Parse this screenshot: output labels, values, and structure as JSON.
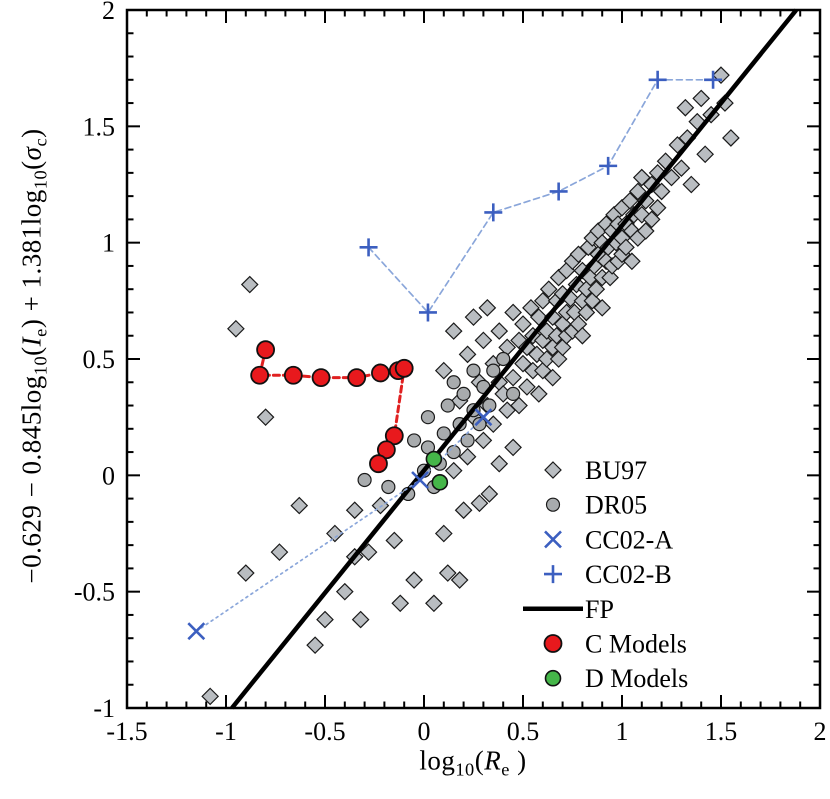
{
  "figure": {
    "background": "#ffffff",
    "frame_color": "#000000"
  },
  "chart_data": {
    "type": "scatter",
    "title": "",
    "xlabel_parts": [
      {
        "t": "log"
      },
      {
        "sub": "10"
      },
      {
        "t": "("
      },
      {
        "i": "R"
      },
      {
        "sub": "e"
      },
      {
        "t": " )"
      }
    ],
    "ylabel_parts": [
      {
        "t": "−0.629 − 0.845log"
      },
      {
        "sub": "10"
      },
      {
        "t": "("
      },
      {
        "i": "I"
      },
      {
        "sub": "e"
      },
      {
        "t": ") + 1.381log"
      },
      {
        "sub": "10"
      },
      {
        "t": "("
      },
      {
        "i": "σ"
      },
      {
        "sub": "c"
      },
      {
        "t": ")"
      }
    ],
    "xlim": [
      -1.5,
      2
    ],
    "ylim": [
      -1,
      2
    ],
    "x_ticks": [
      -1.5,
      -1,
      -0.5,
      0,
      0.5,
      1,
      1.5,
      2
    ],
    "x_tick_labels": [
      "-1.5",
      "-1",
      "-0.5",
      "0",
      "0.5",
      "1",
      "1.5",
      "2"
    ],
    "y_ticks": [
      -1,
      -0.5,
      0,
      0.5,
      1,
      1.5,
      2
    ],
    "y_tick_labels": [
      "-1",
      "-0.5",
      "0",
      "0.5",
      "1",
      "1.5",
      "2"
    ],
    "minor_tick_step": 0.1,
    "grid": false,
    "legend_position": "lower right",
    "series": [
      {
        "name": "BU97",
        "marker": "diamond",
        "fill": "#b9bdc1",
        "edge": "#1a1a1a",
        "size": 8,
        "points": [
          [
            -1.08,
            -0.95
          ],
          [
            -0.88,
            0.82
          ],
          [
            -0.95,
            0.63
          ],
          [
            -0.8,
            0.25
          ],
          [
            -0.9,
            -0.42
          ],
          [
            -0.73,
            -0.33
          ],
          [
            -0.63,
            -0.13
          ],
          [
            -0.55,
            -0.73
          ],
          [
            -0.5,
            -0.62
          ],
          [
            -0.45,
            -0.25
          ],
          [
            -0.4,
            -0.5
          ],
          [
            -0.35,
            -0.35
          ],
          [
            -0.32,
            -0.62
          ],
          [
            -0.28,
            -0.33
          ],
          [
            -0.35,
            -0.15
          ],
          [
            -0.22,
            -0.13
          ],
          [
            -0.15,
            -0.28
          ],
          [
            -0.12,
            -0.55
          ],
          [
            -0.05,
            -0.45
          ],
          [
            0.05,
            -0.55
          ],
          [
            0.12,
            -0.42
          ],
          [
            0.18,
            -0.45
          ],
          [
            0.1,
            -0.25
          ],
          [
            0.2,
            -0.15
          ],
          [
            0.28,
            -0.12
          ],
          [
            0.33,
            -0.08
          ],
          [
            0.15,
            0.02
          ],
          [
            0.22,
            0.08
          ],
          [
            0.3,
            0.15
          ],
          [
            0.38,
            0.05
          ],
          [
            0.45,
            0.12
          ],
          [
            0.35,
            0.22
          ],
          [
            0.42,
            0.28
          ],
          [
            0.25,
            0.25
          ],
          [
            0.32,
            0.3
          ],
          [
            0.38,
            0.4
          ],
          [
            0.1,
            0.45
          ],
          [
            0.15,
            0.62
          ],
          [
            0.18,
            0.32
          ],
          [
            0.22,
            0.52
          ],
          [
            0.25,
            0.68
          ],
          [
            0.28,
            0.4
          ],
          [
            0.3,
            0.58
          ],
          [
            0.32,
            0.72
          ],
          [
            0.35,
            0.48
          ],
          [
            0.38,
            0.62
          ],
          [
            0.4,
            0.35
          ],
          [
            0.42,
            0.55
          ],
          [
            0.45,
            0.7
          ],
          [
            0.45,
            0.42
          ],
          [
            0.48,
            0.58
          ],
          [
            0.48,
            0.3
          ],
          [
            0.5,
            0.48
          ],
          [
            0.5,
            0.65
          ],
          [
            0.52,
            0.38
          ],
          [
            0.52,
            0.55
          ],
          [
            0.54,
            0.72
          ],
          [
            0.55,
            0.45
          ],
          [
            0.55,
            0.6
          ],
          [
            0.57,
            0.52
          ],
          [
            0.58,
            0.68
          ],
          [
            0.58,
            0.35
          ],
          [
            0.6,
            0.58
          ],
          [
            0.6,
            0.75
          ],
          [
            0.6,
            0.45
          ],
          [
            0.62,
            0.62
          ],
          [
            0.62,
            0.5
          ],
          [
            0.63,
            0.8
          ],
          [
            0.65,
            0.55
          ],
          [
            0.65,
            0.68
          ],
          [
            0.65,
            0.42
          ],
          [
            0.67,
            0.75
          ],
          [
            0.67,
            0.6
          ],
          [
            0.68,
            0.85
          ],
          [
            0.68,
            0.5
          ],
          [
            0.7,
            0.65
          ],
          [
            0.7,
            0.78
          ],
          [
            0.7,
            0.55
          ],
          [
            0.72,
            0.7
          ],
          [
            0.72,
            0.88
          ],
          [
            0.72,
            0.6
          ],
          [
            0.74,
            0.76
          ],
          [
            0.75,
            0.62
          ],
          [
            0.75,
            0.92
          ],
          [
            0.76,
            0.7
          ],
          [
            0.77,
            0.82
          ],
          [
            0.78,
            0.65
          ],
          [
            0.78,
            0.95
          ],
          [
            0.8,
            0.75
          ],
          [
            0.8,
            0.88
          ],
          [
            0.8,
            0.6
          ],
          [
            0.82,
            0.8
          ],
          [
            0.82,
            0.7
          ],
          [
            0.83,
            0.98
          ],
          [
            0.84,
            0.85
          ],
          [
            0.85,
            0.75
          ],
          [
            0.85,
            1.02
          ],
          [
            0.86,
            0.9
          ],
          [
            0.87,
            0.8
          ],
          [
            0.88,
            1.05
          ],
          [
            0.88,
            0.95
          ],
          [
            0.9,
            0.85
          ],
          [
            0.9,
            1.0
          ],
          [
            0.9,
            0.72
          ],
          [
            0.92,
            0.92
          ],
          [
            0.92,
            1.08
          ],
          [
            0.93,
            0.98
          ],
          [
            0.94,
            0.85
          ],
          [
            0.95,
            1.05
          ],
          [
            0.95,
            0.9
          ],
          [
            0.96,
            1.12
          ],
          [
            0.97,
            1.0
          ],
          [
            0.98,
            0.92
          ],
          [
            0.98,
            1.08
          ],
          [
            1.0,
            1.02
          ],
          [
            1.0,
            1.15
          ],
          [
            1.0,
            0.95
          ],
          [
            1.02,
            1.08
          ],
          [
            1.02,
            0.98
          ],
          [
            1.04,
            1.18
          ],
          [
            1.05,
            1.05
          ],
          [
            1.05,
            0.92
          ],
          [
            1.06,
            1.12
          ],
          [
            1.08,
            1.22
          ],
          [
            1.08,
            1.02
          ],
          [
            1.1,
            1.12
          ],
          [
            1.1,
            1.28
          ],
          [
            1.12,
            1.18
          ],
          [
            1.12,
            1.05
          ],
          [
            1.15,
            1.25
          ],
          [
            1.15,
            1.1
          ],
          [
            1.18,
            1.3
          ],
          [
            1.18,
            1.15
          ],
          [
            1.2,
            1.22
          ],
          [
            1.22,
            1.35
          ],
          [
            1.25,
            1.28
          ],
          [
            1.28,
            1.42
          ],
          [
            1.3,
            1.32
          ],
          [
            1.32,
            1.58
          ],
          [
            1.33,
            1.45
          ],
          [
            1.35,
            1.25
          ],
          [
            1.38,
            1.52
          ],
          [
            1.4,
            1.62
          ],
          [
            1.42,
            1.38
          ],
          [
            1.45,
            1.55
          ],
          [
            1.5,
            1.72
          ],
          [
            1.52,
            1.6
          ],
          [
            1.55,
            1.45
          ]
        ]
      },
      {
        "name": "DR05",
        "marker": "circle",
        "fill": "#a8abad",
        "edge": "#1a1a1a",
        "size": 6.5,
        "points": [
          [
            -0.3,
            -0.02
          ],
          [
            -0.18,
            -0.05
          ],
          [
            -0.08,
            -0.08
          ],
          [
            0.0,
            0.02
          ],
          [
            0.02,
            0.12
          ],
          [
            0.05,
            -0.05
          ],
          [
            0.08,
            0.05
          ],
          [
            0.1,
            0.18
          ],
          [
            0.12,
            0.3
          ],
          [
            0.15,
            0.1
          ],
          [
            0.15,
            0.4
          ],
          [
            0.18,
            0.22
          ],
          [
            0.2,
            0.35
          ],
          [
            0.22,
            0.15
          ],
          [
            0.25,
            0.45
          ],
          [
            0.25,
            0.28
          ],
          [
            0.28,
            0.22
          ],
          [
            0.3,
            0.38
          ],
          [
            0.33,
            0.3
          ],
          [
            0.35,
            0.45
          ],
          [
            0.02,
            0.25
          ],
          [
            -0.05,
            0.15
          ],
          [
            0.4,
            0.5
          ],
          [
            0.45,
            0.35
          ]
        ]
      },
      {
        "name": "FP",
        "marker": "none",
        "line": {
          "style": "solid",
          "color": "#000000",
          "width": 4.5
        },
        "points": [
          [
            -0.97,
            -1.0
          ],
          [
            1.88,
            2.0
          ]
        ]
      },
      {
        "name": "CC02-A",
        "marker": "x",
        "stroke": "#3c5fc0",
        "size": 8,
        "line": {
          "style": "dotted",
          "color": "#8aa6da",
          "width": 1.7
        },
        "points": [
          [
            -1.15,
            -0.67
          ],
          [
            -0.02,
            -0.02
          ],
          [
            0.3,
            0.25
          ]
        ]
      },
      {
        "name": "CC02-B",
        "marker": "plus",
        "stroke": "#3c5fc0",
        "size": 9,
        "line": {
          "style": "dashed",
          "color": "#8aa6da",
          "width": 1.7
        },
        "points": [
          [
            -0.28,
            0.98
          ],
          [
            0.02,
            0.7
          ],
          [
            0.35,
            1.13
          ],
          [
            0.68,
            1.22
          ],
          [
            0.93,
            1.33
          ],
          [
            1.18,
            1.7
          ],
          [
            1.46,
            1.7
          ]
        ]
      },
      {
        "name": "C Models",
        "marker": "circle",
        "fill": "#e8191d",
        "edge": "#111111",
        "size": 8.5,
        "edge_width": 1.8,
        "line": {
          "style": "dashed",
          "color": "#e02020",
          "width": 3
        },
        "points": [
          [
            -0.8,
            0.54
          ],
          [
            -0.83,
            0.43
          ],
          [
            -0.66,
            0.43
          ],
          [
            -0.52,
            0.42
          ],
          [
            -0.34,
            0.42
          ],
          [
            -0.22,
            0.44
          ],
          [
            -0.13,
            0.45
          ],
          [
            -0.1,
            0.46
          ],
          [
            -0.15,
            0.17
          ],
          [
            -0.19,
            0.11
          ],
          [
            -0.23,
            0.05
          ]
        ]
      },
      {
        "name": "D Models",
        "marker": "circle",
        "fill": "#45b649",
        "edge": "#111111",
        "size": 7.5,
        "edge_width": 1.6,
        "points": [
          [
            0.05,
            0.07
          ],
          [
            0.08,
            -0.03
          ]
        ]
      }
    ],
    "legend": {
      "items": [
        {
          "label": "BU97",
          "series": "BU97"
        },
        {
          "label": "DR05",
          "series": "DR05"
        },
        {
          "label": "CC02-A",
          "series": "CC02-A"
        },
        {
          "label": "CC02-B",
          "series": "CC02-B"
        },
        {
          "label": "FP",
          "series": "FP"
        },
        {
          "label": "C Models",
          "series": "C Models"
        },
        {
          "label": "D Models",
          "series": "D Models"
        }
      ]
    }
  }
}
